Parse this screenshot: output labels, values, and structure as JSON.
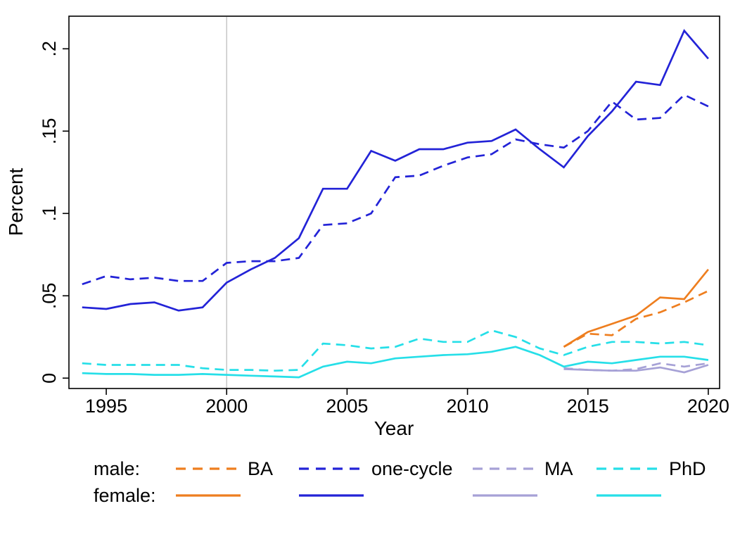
{
  "figure": {
    "background": "#ffffff"
  },
  "chart_data": {
    "type": "line",
    "title": "",
    "xlabel": "Year",
    "ylabel": "Percent",
    "grid": false,
    "legend_position": "bottom",
    "x_ticks": [
      1995,
      2000,
      2005,
      2010,
      2015,
      2020
    ],
    "x_tick_labels": [
      "1995",
      "2000",
      "2005",
      "2010",
      "2015",
      "2020"
    ],
    "y_ticks": [
      0,
      0.05,
      0.1,
      0.15,
      0.2
    ],
    "y_tick_labels": [
      "0",
      ".05",
      ".1",
      ".15",
      ".2"
    ],
    "x_range": [
      1993.45,
      2020.47
    ],
    "y_range": [
      -0.0063,
      0.2198
    ],
    "reference_line": {
      "x": 2000,
      "color": "#c6c6c6"
    },
    "series": [
      {
        "id": "male-one-cycle",
        "sex": "male",
        "degree": "one-cycle",
        "color": "#2323d7",
        "dashed": true,
        "x": [
          1994,
          1995,
          1996,
          1997,
          1998,
          1999,
          2000,
          2001,
          2002,
          2003,
          2004,
          2005,
          2006,
          2007,
          2008,
          2009,
          2010,
          2011,
          2012,
          2013,
          2014,
          2015,
          2016,
          2017,
          2018,
          2019,
          2020
        ],
        "y": [
          0.057,
          0.062,
          0.06,
          0.061,
          0.059,
          0.059,
          0.07,
          0.071,
          0.071,
          0.073,
          0.093,
          0.094,
          0.1,
          0.122,
          0.123,
          0.129,
          0.134,
          0.136,
          0.145,
          0.142,
          0.14,
          0.15,
          0.168,
          0.157,
          0.158,
          0.172,
          0.165
        ]
      },
      {
        "id": "female-one-cycle",
        "sex": "female",
        "degree": "one-cycle",
        "color": "#2323d7",
        "dashed": false,
        "x": [
          1994,
          1995,
          1996,
          1997,
          1998,
          1999,
          2000,
          2001,
          2002,
          2003,
          2004,
          2005,
          2006,
          2007,
          2008,
          2009,
          2010,
          2011,
          2012,
          2013,
          2014,
          2015,
          2016,
          2017,
          2018,
          2019,
          2020
        ],
        "y": [
          0.043,
          0.042,
          0.045,
          0.046,
          0.041,
          0.043,
          0.058,
          0.066,
          0.073,
          0.085,
          0.115,
          0.115,
          0.138,
          0.132,
          0.139,
          0.139,
          0.143,
          0.144,
          0.151,
          0.139,
          0.128,
          0.147,
          0.162,
          0.18,
          0.178,
          0.211,
          0.194
        ]
      },
      {
        "id": "male-phd",
        "sex": "male",
        "degree": "PhD",
        "color": "#26dfe8",
        "dashed": true,
        "x": [
          1994,
          1995,
          1996,
          1997,
          1998,
          1999,
          2000,
          2001,
          2002,
          2003,
          2004,
          2005,
          2006,
          2007,
          2008,
          2009,
          2010,
          2011,
          2012,
          2013,
          2014,
          2015,
          2016,
          2017,
          2018,
          2019,
          2020
        ],
        "y": [
          0.009,
          0.008,
          0.008,
          0.008,
          0.008,
          0.006,
          0.005,
          0.005,
          0.0045,
          0.005,
          0.021,
          0.02,
          0.018,
          0.019,
          0.024,
          0.022,
          0.022,
          0.029,
          0.025,
          0.018,
          0.014,
          0.019,
          0.022,
          0.022,
          0.021,
          0.022,
          0.02
        ]
      },
      {
        "id": "female-phd",
        "sex": "female",
        "degree": "PhD",
        "color": "#26dfe8",
        "dashed": false,
        "x": [
          1994,
          1995,
          1996,
          1997,
          1998,
          1999,
          2000,
          2001,
          2002,
          2003,
          2004,
          2005,
          2006,
          2007,
          2008,
          2009,
          2010,
          2011,
          2012,
          2013,
          2014,
          2015,
          2016,
          2017,
          2018,
          2019,
          2020
        ],
        "y": [
          0.003,
          0.0025,
          0.0025,
          0.002,
          0.002,
          0.0025,
          0.002,
          0.0015,
          0.001,
          0.0005,
          0.007,
          0.01,
          0.009,
          0.012,
          0.013,
          0.014,
          0.0145,
          0.016,
          0.019,
          0.014,
          0.007,
          0.01,
          0.009,
          0.011,
          0.013,
          0.013,
          0.011
        ]
      },
      {
        "id": "male-ma",
        "sex": "male",
        "degree": "MA",
        "color": "#a6a1d6",
        "dashed": true,
        "x": [
          2014,
          2015,
          2016,
          2017,
          2018,
          2019,
          2020
        ],
        "y": [
          0.006,
          0.005,
          0.0045,
          0.0055,
          0.009,
          0.007,
          0.009
        ]
      },
      {
        "id": "female-ma",
        "sex": "female",
        "degree": "MA",
        "color": "#a6a1d6",
        "dashed": false,
        "x": [
          2014,
          2015,
          2016,
          2017,
          2018,
          2019,
          2020
        ],
        "y": [
          0.0055,
          0.005,
          0.0045,
          0.0045,
          0.0065,
          0.0035,
          0.008
        ]
      },
      {
        "id": "male-ba",
        "sex": "male",
        "degree": "BA",
        "color": "#ee7e1f",
        "dashed": true,
        "x": [
          2014,
          2015,
          2016,
          2017,
          2018,
          2019,
          2020
        ],
        "y": [
          0.019,
          0.027,
          0.026,
          0.036,
          0.04,
          0.046,
          0.053
        ]
      },
      {
        "id": "female-ba",
        "sex": "female",
        "degree": "BA",
        "color": "#ee7e1f",
        "dashed": false,
        "x": [
          2014,
          2015,
          2016,
          2017,
          2018,
          2019,
          2020
        ],
        "y": [
          0.019,
          0.028,
          0.033,
          0.038,
          0.049,
          0.048,
          0.066
        ]
      }
    ]
  },
  "legend": {
    "rows": [
      {
        "label": "male:",
        "style": "dashed",
        "items": [
          "BA",
          "one-cycle",
          "MA",
          "PhD"
        ]
      },
      {
        "label": "female:",
        "style": "solid",
        "items": [
          "",
          "",
          "",
          ""
        ]
      }
    ],
    "colors": {
      "BA": "#ee7e1f",
      "one-cycle": "#2323d7",
      "MA": "#a6a1d6",
      "PhD": "#26dfe8"
    }
  }
}
